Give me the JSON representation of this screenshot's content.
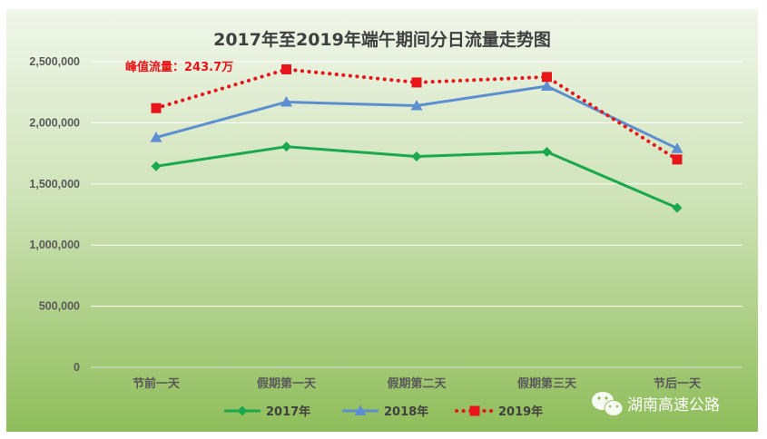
{
  "chart_data": {
    "type": "line",
    "title": "2017年至2019年端午期间分日流量走势图",
    "categories": [
      "节前一天",
      "假期第一天",
      "假期第二天",
      "假期第三天",
      "节后一天"
    ],
    "ylim": [
      0,
      2500000
    ],
    "yticks": [
      0,
      500000,
      1000000,
      1500000,
      2000000,
      2500000
    ],
    "ytick_labels": [
      "0",
      "500,000",
      "1,000,000",
      "1,500,000",
      "2,000,000",
      "2,500,000"
    ],
    "grid": true,
    "legend_position": "bottom",
    "series": [
      {
        "name": "2017年",
        "values": [
          1645000,
          1805000,
          1725000,
          1762000,
          1305000
        ],
        "color": "#1aa84c",
        "marker": "diamond",
        "style": "solid"
      },
      {
        "name": "2018年",
        "values": [
          1880000,
          2170000,
          2140000,
          2300000,
          1790000
        ],
        "color": "#5b8fd0",
        "marker": "triangle",
        "style": "solid"
      },
      {
        "name": "2019年",
        "values": [
          2120000,
          2437000,
          2330000,
          2375000,
          1700000
        ],
        "color": "#e8141a",
        "marker": "square",
        "style": "dotted"
      }
    ],
    "annotation": {
      "text": "峰值流量：243.7万",
      "series": "2019年",
      "category_index": 1
    }
  },
  "watermark": {
    "text": "湖南高速公路",
    "icon": "wechat-icon"
  },
  "colors": {
    "bg_top": "#eaf3e2",
    "bg_bottom": "#8fbf5a",
    "grid": "#ffffff",
    "text": "#595959"
  }
}
